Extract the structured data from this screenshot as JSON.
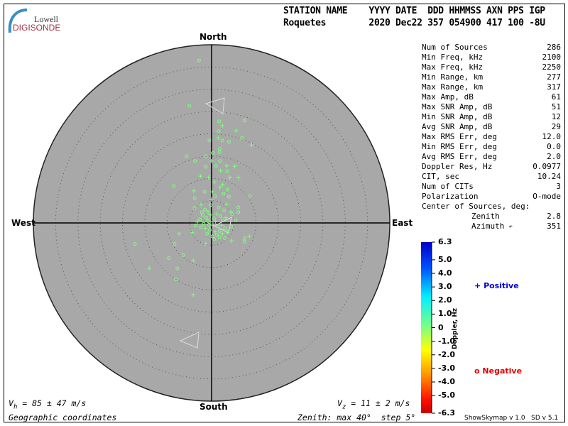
{
  "logo": {
    "line1": "Lowell",
    "line2": "DIGISONDE"
  },
  "header": {
    "labels": "STATION NAME    YYYY DATE  DDD HHMMSS AXN PPS IGP",
    "values": "Roquetes        2020 Dec22 357 054900 417 100 -8U"
  },
  "stats": [
    {
      "label": "Num of Sources",
      "value": "286"
    },
    {
      "label": "Min Freq, kHz",
      "value": "2100"
    },
    {
      "label": "Max Freq, kHz",
      "value": "2250"
    },
    {
      "label": "Min Range, km",
      "value": "277"
    },
    {
      "label": "Max Range, km",
      "value": "317"
    },
    {
      "label": "Max Amp, dB",
      "value": "61"
    },
    {
      "label": "Max SNR Amp, dB",
      "value": "51"
    },
    {
      "label": "Min SNR Amp, dB",
      "value": "12"
    },
    {
      "label": "Avg SNR Amp, dB",
      "value": "29"
    },
    {
      "label": "Max RMS Err, deg",
      "value": "12.0"
    },
    {
      "label": "Min RMS Err, deg",
      "value": "0.0"
    },
    {
      "label": "Avg RMS Err, deg",
      "value": "2.0"
    },
    {
      "label": "Doppler Res, Hz",
      "value": "0.0977"
    },
    {
      "label": "CIT, sec",
      "value": "10.24"
    },
    {
      "label": "Num of CITs",
      "value": "3"
    },
    {
      "label": "Polarization",
      "value": "O-mode"
    }
  ],
  "center": {
    "title": "Center of Sources, deg:",
    "zenith_label": "Zenith",
    "zenith": "2.8",
    "azimuth_label": "Azimuth",
    "azimuth_icon": "arrow-icon",
    "azimuth": "351"
  },
  "footer": {
    "vh": "V",
    "vh_sub": "h",
    "vh_val": " = 85 ± 47 m/s",
    "vz": "V",
    "vz_sub": "z",
    "vz_val": " = 11 ± 2 m/s",
    "coords": "Geographic coordinates",
    "zenith": "Zenith: max 40°  step 5°",
    "version": "ShowSkymap v 1.0   SD v 5.1"
  },
  "chart_data": {
    "type": "scatter",
    "projection": "polar-zenith",
    "directions": {
      "north": "North",
      "south": "South",
      "east": "East",
      "west": "West"
    },
    "zenith_max_deg": 40,
    "zenith_step_deg": 5,
    "grid": true,
    "colors": {
      "background": "#a8a8a8",
      "point": "#7fff7f",
      "grid": "#555555"
    },
    "colorbar": {
      "label": "Doppler, Hz",
      "range": [
        -6.3,
        6.3
      ],
      "ticks": [
        "6.3",
        "5.0",
        "4.0",
        "3.0",
        "2.0",
        "1.0",
        "0",
        "-1.0",
        "-2.0",
        "-3.0",
        "-4.0",
        "-5.0",
        "-6.3"
      ],
      "tick_values": [
        6.3,
        5,
        4,
        3,
        2,
        1,
        0,
        -1,
        -2,
        -3,
        -4,
        -5,
        -6.3
      ]
    },
    "legend": [
      {
        "symbol": "+",
        "label": "Positive",
        "color": "#0000dd"
      },
      {
        "symbol": "o",
        "label": "Negative",
        "color": "#dd0000"
      }
    ],
    "points_note_units": "east_deg, north_deg, polarity",
    "points": [
      [
        -2.8,
        36.5,
        "o"
      ],
      [
        -5.0,
        26.3,
        "o"
      ],
      [
        1.7,
        22.8,
        "o"
      ],
      [
        7.4,
        23.0,
        "o"
      ],
      [
        2.4,
        21.8,
        "+"
      ],
      [
        5.5,
        20.7,
        "+"
      ],
      [
        1.6,
        20.6,
        "o"
      ],
      [
        1.5,
        19.1,
        "+"
      ],
      [
        6.8,
        19.1,
        "o"
      ],
      [
        9.0,
        17.5,
        "+"
      ],
      [
        -0.5,
        18.5,
        "o"
      ],
      [
        2.4,
        18.5,
        "o"
      ],
      [
        3.9,
        18.2,
        "o"
      ],
      [
        1.8,
        16.6,
        "o"
      ],
      [
        1.8,
        15.9,
        "o"
      ],
      [
        0.3,
        15.7,
        "o"
      ],
      [
        -5.6,
        15.0,
        "o"
      ],
      [
        -1.3,
        15.0,
        "o"
      ],
      [
        -3.7,
        13.9,
        "o"
      ],
      [
        0.0,
        13.9,
        "+"
      ],
      [
        1.9,
        13.9,
        "o"
      ],
      [
        1.0,
        12.8,
        "o"
      ],
      [
        3.4,
        12.8,
        "+"
      ],
      [
        5.2,
        12.7,
        "+"
      ],
      [
        -1.3,
        12.6,
        "o"
      ],
      [
        2.0,
        11.7,
        "+"
      ],
      [
        3.5,
        11.6,
        "o"
      ],
      [
        -2.5,
        10.5,
        "+"
      ],
      [
        6.0,
        10.2,
        "+"
      ],
      [
        4.1,
        10.2,
        "+"
      ],
      [
        -0.7,
        10.2,
        "+"
      ],
      [
        0.6,
        9.2,
        "+"
      ],
      [
        -8.5,
        8.3,
        "o"
      ],
      [
        2.5,
        8.6,
        "+"
      ],
      [
        1.9,
        8.0,
        "+"
      ],
      [
        3.6,
        7.5,
        "o"
      ],
      [
        -4.0,
        7.2,
        "+"
      ],
      [
        -1.6,
        7.0,
        "o"
      ],
      [
        0.2,
        7.0,
        "+"
      ],
      [
        2.7,
        6.6,
        "o"
      ],
      [
        8.6,
        6.0,
        "o"
      ],
      [
        -3.8,
        5.6,
        "o"
      ],
      [
        0.0,
        5.3,
        "+"
      ],
      [
        3.9,
        5.9,
        "o"
      ],
      [
        0.8,
        6.0,
        "o"
      ],
      [
        -2.4,
        4.1,
        "+"
      ],
      [
        -3.8,
        3.4,
        "o"
      ],
      [
        6.0,
        3.5,
        "o"
      ],
      [
        6.0,
        2.4,
        "o"
      ],
      [
        4.3,
        2.5,
        "+"
      ],
      [
        5.4,
        0.6,
        "o"
      ],
      [
        8.5,
        -3.0,
        "+"
      ],
      [
        7.4,
        -3.4,
        "o"
      ],
      [
        7.4,
        -4.2,
        "o"
      ],
      [
        4.5,
        -4.0,
        "+"
      ],
      [
        -7.3,
        -2.4,
        "+"
      ],
      [
        -4.3,
        -2.2,
        "+"
      ],
      [
        -1.3,
        -4.7,
        "+"
      ],
      [
        -17.2,
        -4.7,
        "o"
      ],
      [
        -8.3,
        -4.7,
        "o"
      ],
      [
        -6.4,
        -7.2,
        "o"
      ],
      [
        -9.6,
        -7.9,
        "o"
      ],
      [
        -4.1,
        -8.5,
        "+"
      ],
      [
        -14.0,
        -10.2,
        "+"
      ],
      [
        -7.7,
        -10.2,
        "o"
      ],
      [
        -8.0,
        -12.7,
        "o"
      ],
      [
        -4.1,
        -16.1,
        "+"
      ],
      [
        -1.5,
        3.0,
        "o"
      ],
      [
        -0.8,
        2.5,
        "+"
      ],
      [
        -2.0,
        1.8,
        "o"
      ],
      [
        -1.2,
        1.2,
        "o"
      ],
      [
        -0.3,
        1.8,
        "+"
      ],
      [
        0.5,
        1.0,
        "o"
      ],
      [
        1.2,
        2.0,
        "+"
      ],
      [
        2.0,
        1.5,
        "o"
      ],
      [
        2.8,
        2.8,
        "o"
      ],
      [
        3.2,
        1.2,
        "+"
      ],
      [
        -2.6,
        0.8,
        "o"
      ],
      [
        -3.2,
        0.2,
        "+"
      ],
      [
        -1.8,
        -0.2,
        "o"
      ],
      [
        -0.6,
        -0.4,
        "o"
      ],
      [
        0.4,
        -0.6,
        "+"
      ],
      [
        1.4,
        -0.8,
        "o"
      ],
      [
        2.3,
        -0.5,
        "+"
      ],
      [
        3.0,
        -1.2,
        "o"
      ],
      [
        1.8,
        -1.8,
        "o"
      ],
      [
        0.8,
        -2.0,
        "+"
      ],
      [
        -0.4,
        -1.6,
        "o"
      ],
      [
        -1.4,
        -1.2,
        "+"
      ],
      [
        -2.4,
        -1.0,
        "o"
      ],
      [
        1.2,
        -2.6,
        "o"
      ],
      [
        2.4,
        -2.4,
        "+"
      ],
      [
        3.6,
        -2.0,
        "o"
      ],
      [
        4.4,
        -0.8,
        "o"
      ],
      [
        0.2,
        -3.0,
        "o"
      ],
      [
        -0.8,
        0.4,
        "o"
      ],
      [
        0.0,
        0.0,
        "o"
      ],
      [
        0.9,
        0.3,
        "+"
      ],
      [
        -1.0,
        -2.4,
        "o"
      ],
      [
        2.6,
        0.6,
        "o"
      ],
      [
        -2.2,
        2.4,
        "o"
      ],
      [
        1.6,
        3.4,
        "o"
      ],
      [
        -0.2,
        4.0,
        "o"
      ],
      [
        3.4,
        4.2,
        "+"
      ],
      [
        4.6,
        2.0,
        "o"
      ],
      [
        -3.6,
        -0.6,
        "o"
      ],
      [
        0.6,
        -3.6,
        "o"
      ],
      [
        1.8,
        -3.2,
        "o"
      ],
      [
        3.0,
        -3.4,
        "o"
      ]
    ]
  }
}
